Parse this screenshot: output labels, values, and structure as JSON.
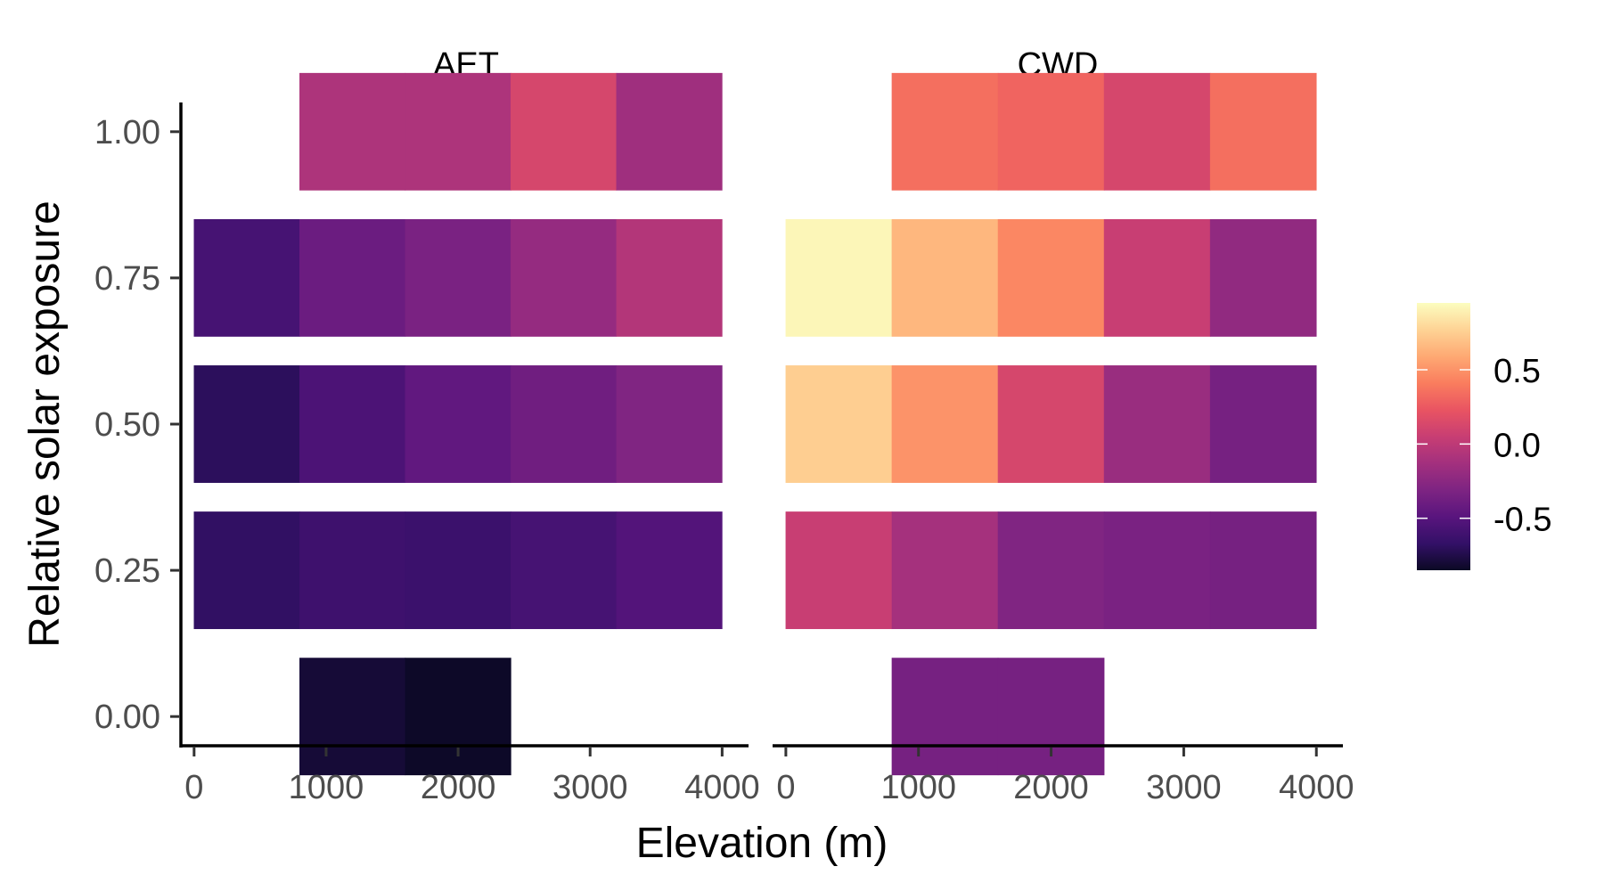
{
  "chart_data": {
    "type": "heatmap",
    "xlabel": "Elevation (m)",
    "ylabel": "Relative solar exposure",
    "x_centers": [
      0,
      800,
      1600,
      2400,
      3200
    ],
    "x_tick_labels": [
      "0",
      "1000",
      "2000",
      "3000",
      "4000"
    ],
    "x_ticks": [
      0,
      1000,
      2000,
      3000,
      4000
    ],
    "xlim": [
      -100,
      4200
    ],
    "y_centers": [
      0.0,
      0.25,
      0.5,
      0.75,
      1.0
    ],
    "y_tick_labels": [
      "0.00",
      "0.25",
      "0.50",
      "0.75",
      "1.00"
    ],
    "y_ticks": [
      0.0,
      0.25,
      0.5,
      0.75,
      1.0
    ],
    "ylim": [
      -0.05,
      1.05
    ],
    "tile_width": 800,
    "tile_height": 0.2,
    "fill_range": [
      -0.85,
      0.95
    ],
    "legend": {
      "ticks": [
        0.5,
        0.0,
        -0.5
      ],
      "labels": [
        "0.5",
        "0.0",
        "-0.5"
      ],
      "colors": [
        "#fcfdbf",
        "#fed395",
        "#fea973",
        "#fa7d5e",
        "#e95462",
        "#c83e73",
        "#a3307e",
        "#7e2482",
        "#59157e",
        "#331067",
        "#0b0924"
      ]
    },
    "panels": [
      {
        "name": "AET",
        "values": [
          [
            null,
            -0.8,
            -0.84,
            null,
            null
          ],
          [
            -0.68,
            -0.62,
            -0.63,
            -0.58,
            -0.52
          ],
          [
            -0.7,
            -0.55,
            -0.45,
            -0.38,
            -0.3
          ],
          [
            -0.58,
            -0.4,
            -0.33,
            -0.2,
            -0.05
          ],
          [
            null,
            -0.08,
            -0.08,
            0.12,
            -0.15
          ]
        ]
      },
      {
        "name": "CWD",
        "values": [
          [
            null,
            -0.35,
            -0.35,
            null,
            null
          ],
          [
            0.05,
            -0.12,
            -0.3,
            -0.33,
            -0.35
          ],
          [
            0.75,
            0.5,
            0.12,
            -0.18,
            -0.35
          ],
          [
            0.92,
            0.65,
            0.45,
            0.05,
            -0.22
          ],
          [
            null,
            0.35,
            0.3,
            0.12,
            0.35
          ]
        ]
      }
    ]
  }
}
